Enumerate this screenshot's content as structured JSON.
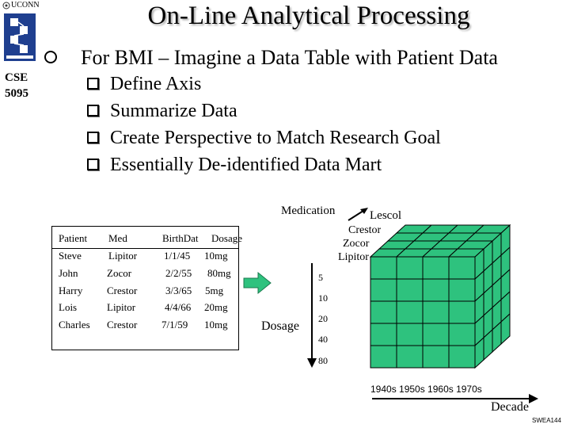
{
  "sidebar": {
    "logo_text": "UCONN",
    "course_line1": "CSE",
    "course_line2": "5095"
  },
  "slide": {
    "title": "On-Line Analytical Processing",
    "main_bullet": "For BMI – Imagine a Data Table with Patient Data",
    "sub_bullets": [
      "Define Axis",
      "Summarize Data",
      "Create Perspective to Match Research Goal",
      "Essentially De-identified Data Mart"
    ]
  },
  "table": {
    "headers": [
      "Patient",
      "Med",
      "BirthDat",
      "Dosage"
    ],
    "rows": [
      [
        "Steve",
        "Lipitor",
        "1/1/45",
        "10mg"
      ],
      [
        "John",
        "Zocor",
        "2/2/55",
        "80mg"
      ],
      [
        "Harry",
        "Crestor",
        "3/3/65",
        "5mg"
      ],
      [
        "Lois",
        "Lipitor",
        "4/4/66",
        "20mg"
      ],
      [
        "Charles",
        "Crestor",
        "7/1/59",
        "10mg"
      ]
    ]
  },
  "cube": {
    "medication_label": "Medication",
    "medications": [
      "Lescol",
      "Crestor",
      "Zocor",
      "Lipitor"
    ],
    "dosage_label": "Dosage",
    "dosages": [
      "5",
      "10",
      "20",
      "40",
      "80"
    ],
    "decades_text": "1940s 1950s 1960s 1970s",
    "decade_label": "Decade",
    "face_color": "#2ec27e",
    "grid_color": "#000000"
  },
  "footer": {
    "code": "SWEA144"
  }
}
